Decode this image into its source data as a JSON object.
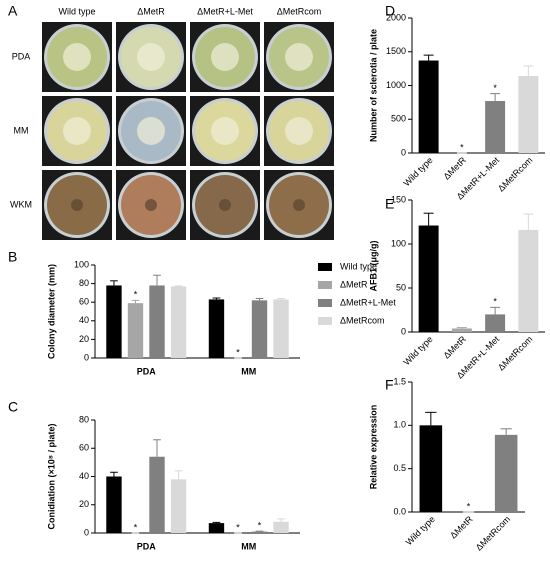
{
  "photo_panel": {
    "label": "A",
    "columns": [
      "Wild type",
      "ΔMetR",
      "ΔMetR+L-Met",
      "ΔMetRcom"
    ],
    "rows": [
      "PDA",
      "MM",
      "WKM"
    ]
  },
  "chart_data": [
    {
      "type": "bar",
      "label": "B",
      "y_label": "Colony diameter (mm)",
      "categories": [
        "PDA",
        "MM"
      ],
      "series": [
        {
          "name": "Wild type",
          "color": "#000000",
          "values": [
            78,
            63
          ],
          "errors": [
            5,
            1.5
          ],
          "significance": [
            null,
            null
          ]
        },
        {
          "name": "ΔMetR",
          "color": "#a6a6a6",
          "values": [
            59,
            0
          ],
          "errors": [
            3,
            0
          ],
          "significance": [
            "*",
            "*"
          ]
        },
        {
          "name": "ΔMetR+L-Met",
          "color": "#808080",
          "values": [
            78,
            62
          ],
          "errors": [
            11,
            2
          ],
          "significance": [
            null,
            null
          ]
        },
        {
          "name": "ΔMetRcom",
          "color": "#d9d9d9",
          "values": [
            77,
            63
          ],
          "errors": [
            0.5,
            1
          ],
          "significance": [
            null,
            null
          ]
        }
      ],
      "ylim": [
        0,
        100
      ],
      "yticks": [
        0,
        20,
        40,
        60,
        80,
        100
      ],
      "legend": "right"
    },
    {
      "type": "bar",
      "label": "C",
      "y_label": "Conidiation (×10⁸ / plate)",
      "categories": [
        "PDA",
        "MM"
      ],
      "series": [
        {
          "color": "#000000",
          "values": [
            40,
            7
          ],
          "errors": [
            3,
            0.5
          ],
          "significance": [
            null,
            null
          ]
        },
        {
          "color": "#a6a6a6",
          "values": [
            0,
            0
          ],
          "errors": [
            0,
            0
          ],
          "significance": [
            "*",
            "*"
          ]
        },
        {
          "color": "#808080",
          "values": [
            54,
            1
          ],
          "errors": [
            12,
            0.3
          ],
          "significance": [
            null,
            "*"
          ]
        },
        {
          "color": "#d9d9d9",
          "values": [
            38,
            8
          ],
          "errors": [
            6,
            2
          ],
          "significance": [
            null,
            null
          ]
        }
      ],
      "ylim": [
        0,
        80
      ],
      "yticks": [
        0,
        20,
        40,
        60,
        80
      ]
    },
    {
      "type": "bar",
      "label": "D",
      "y_label": "Number of sclerotia / plate",
      "categories": [
        "Wild type",
        "ΔMetR",
        "ΔMetR+L-Met",
        "ΔMetRcom"
      ],
      "values": [
        1370,
        0,
        770,
        1140
      ],
      "errors": [
        80,
        0,
        110,
        150
      ],
      "significance": [
        null,
        "*",
        "*",
        null
      ],
      "colors": [
        "#000000",
        "#a6a6a6",
        "#808080",
        "#d9d9d9"
      ],
      "ylim": [
        0,
        2000
      ],
      "yticks": [
        0,
        500,
        1000,
        1500,
        2000
      ]
    },
    {
      "type": "bar",
      "label": "E",
      "y_label": "AFB1 (μg/g)",
      "categories": [
        "Wild type",
        "ΔMetR",
        "ΔMetR+L-Met",
        "ΔMetRcom"
      ],
      "values": [
        121,
        4,
        20,
        116
      ],
      "errors": [
        14,
        1,
        8,
        18
      ],
      "significance": [
        null,
        null,
        "*",
        null
      ],
      "colors": [
        "#000000",
        "#a6a6a6",
        "#808080",
        "#d9d9d9"
      ],
      "ylim": [
        0,
        150
      ],
      "yticks": [
        0,
        50,
        100,
        150
      ]
    },
    {
      "type": "bar",
      "label": "F",
      "y_label": "Relative expression",
      "categories": [
        "Wild type",
        "ΔMetR",
        "ΔMetRcom"
      ],
      "values": [
        1.0,
        0,
        0.89
      ],
      "errors": [
        0.15,
        0,
        0.07
      ],
      "significance": [
        null,
        "*",
        null
      ],
      "colors": [
        "#000000",
        "#a6a6a6",
        "#808080"
      ],
      "ylim": [
        0,
        1.5
      ],
      "yticks": [
        {
          "value": 0,
          "label": "0.0"
        },
        0.5,
        {
          "value": 1,
          "label": "1.0"
        },
        1.5
      ]
    }
  ]
}
